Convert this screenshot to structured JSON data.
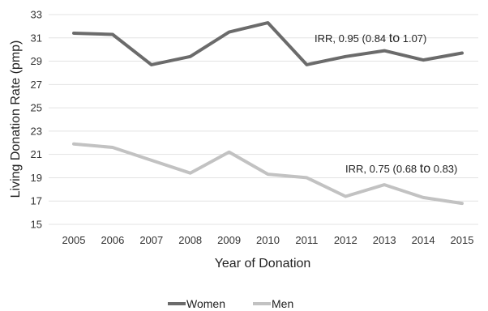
{
  "chart_data": {
    "type": "line",
    "xlabel": "Year of Donation",
    "ylabel": "Living Donation Rate (pmp)",
    "ylim": [
      15,
      33
    ],
    "yticks": [
      15,
      17,
      19,
      21,
      23,
      25,
      27,
      29,
      31,
      33
    ],
    "x": [
      "2005",
      "2006",
      "2007",
      "2008",
      "2009",
      "2010",
      "2011",
      "2012",
      "2013",
      "2014",
      "2015"
    ],
    "grid": true,
    "legend_position": "bottom",
    "series": [
      {
        "name": "Women",
        "color": "#6b6b6b",
        "values": [
          31.4,
          31.3,
          28.7,
          29.4,
          31.5,
          32.3,
          28.7,
          29.4,
          29.9,
          29.1,
          29.7
        ]
      },
      {
        "name": "Men",
        "color": "#c2c2c2",
        "values": [
          21.9,
          21.6,
          20.5,
          19.4,
          21.2,
          19.3,
          19.0,
          17.4,
          18.4,
          17.3,
          16.8
        ]
      }
    ],
    "annotations": [
      {
        "series": "Women",
        "prefix": "IRR, 0.95 (0.84 ",
        "to": "to",
        "suffix": " 1.07)"
      },
      {
        "series": "Men",
        "prefix": "IRR, 0.75 (0.68 ",
        "to": "to",
        "suffix": " 0.83)"
      }
    ]
  }
}
